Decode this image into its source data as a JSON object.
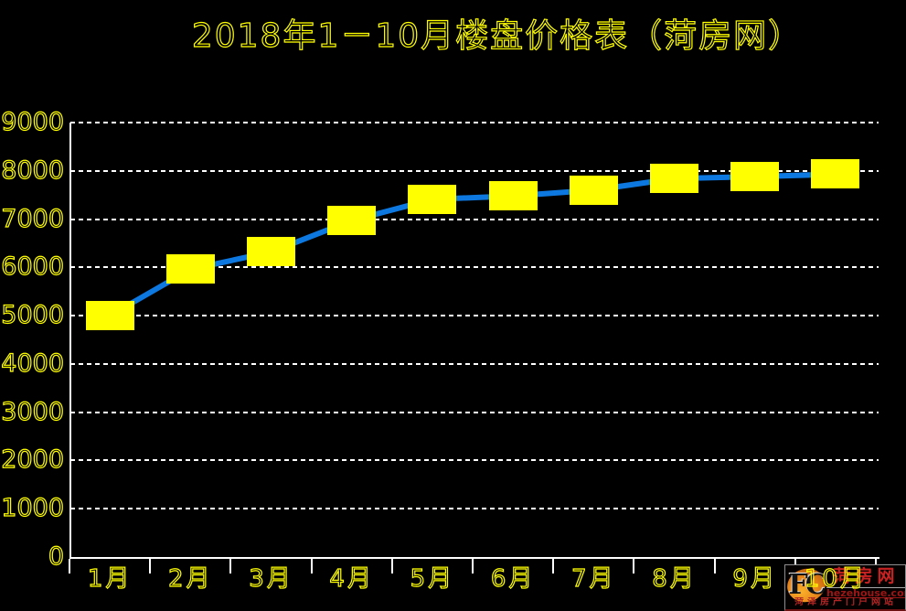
{
  "chart_data": {
    "type": "line",
    "title": "2018年1－10月楼盘价格表（菏房网）",
    "categories": [
      "1月",
      "2月",
      "3月",
      "4月",
      "5月",
      "6月",
      "7月",
      "8月",
      "9月",
      "10月"
    ],
    "values": [
      5000,
      5960,
      6320,
      6970,
      7410,
      7480,
      7600,
      7840,
      7880,
      7930
    ],
    "xlabel": "",
    "ylabel": "",
    "ylim": [
      0,
      9000
    ],
    "ytick_interval": 1000,
    "y_ticks": [
      0,
      1000,
      2000,
      3000,
      4000,
      5000,
      6000,
      7000,
      8000,
      9000
    ],
    "grid": "horizontal-dashed",
    "legend": "none",
    "marker_shape": "rectangle",
    "colors": {
      "background": "#000000",
      "text": "#ffff00",
      "grid": "#ffffff",
      "axis": "#ffffff",
      "line": "#0d78e0",
      "marker": "#ffff00"
    }
  },
  "watermark": {
    "logo_text": "FC",
    "site_name": "菏房网",
    "domain": "hezehouse.com",
    "tagline": "菏泽房产门户网站",
    "colors": {
      "site_name": "#c92222",
      "domain": "#9c1616",
      "tagline": "#b12626",
      "logo_orange": "#e8851a",
      "logo_text": "#141414"
    }
  }
}
